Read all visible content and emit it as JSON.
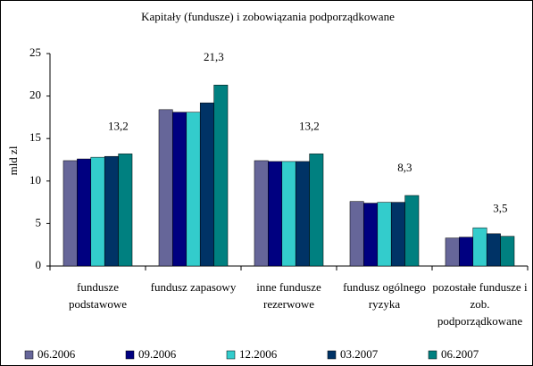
{
  "chart_data": {
    "type": "bar",
    "title": "Kapitały (fundusze) i zobowiązania podporządkowane",
    "y_label": "mld zl",
    "categories": [
      "fundusze podstawowe",
      "fundusz zapasowy",
      "inne fundusze rezerwowe",
      "fundusz ogólnego ryzyka",
      "pozostałe fundusze i zob. podporządkowane"
    ],
    "series": [
      {
        "name": "06.2006",
        "color": "#666699",
        "values": [
          12.4,
          18.4,
          12.4,
          7.6,
          3.3
        ]
      },
      {
        "name": "09.2006",
        "color": "#000080",
        "values": [
          12.6,
          18.1,
          12.3,
          7.4,
          3.4
        ]
      },
      {
        "name": "12.2006",
        "color": "#33cccc",
        "values": [
          12.8,
          18.1,
          12.3,
          7.5,
          4.5
        ]
      },
      {
        "name": "03.2007",
        "color": "#003366",
        "values": [
          12.9,
          19.2,
          12.3,
          7.5,
          3.8
        ]
      },
      {
        "name": "06.2007",
        "color": "#008080",
        "values": [
          13.2,
          21.3,
          13.2,
          8.3,
          3.5
        ],
        "value_labels": [
          "13,2",
          "21,3",
          "13,2",
          "8,3",
          "3,5"
        ]
      }
    ],
    "ylim": [
      0,
      25
    ],
    "yticks": [
      0,
      5,
      10,
      15,
      20,
      25
    ],
    "grid": false,
    "legend": "bottom"
  }
}
